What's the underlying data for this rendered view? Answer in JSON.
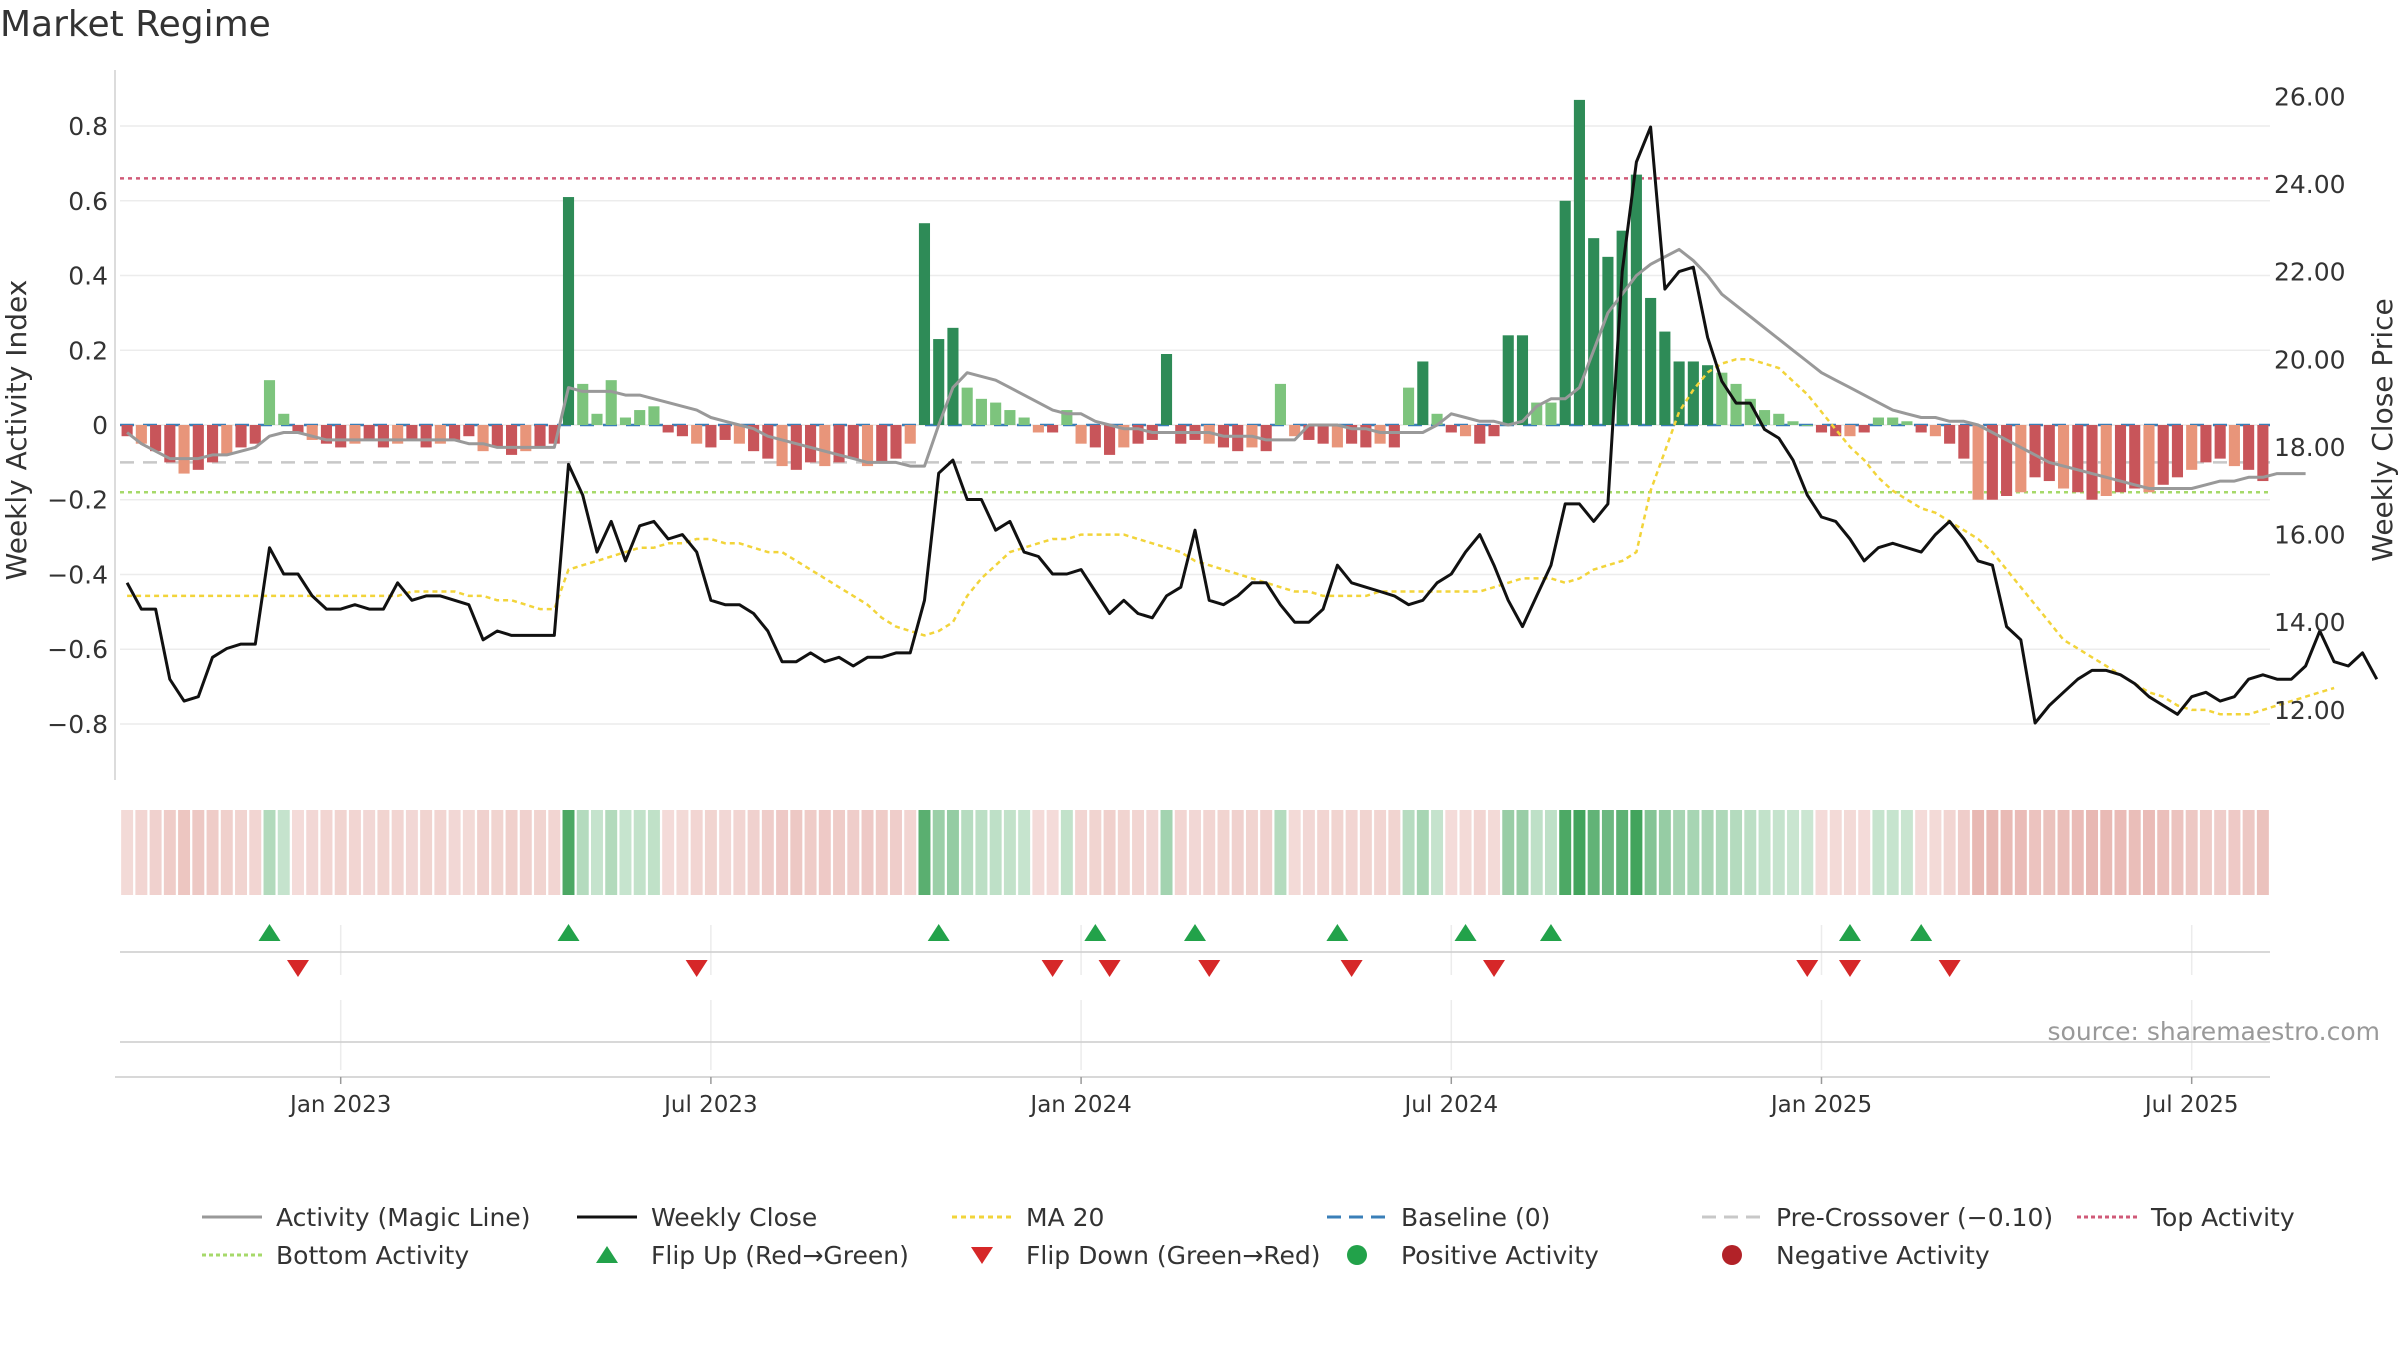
{
  "title": "Market Regime",
  "source_label": "source: sharemaestro.com",
  "colors": {
    "green_strong": "#2e8b57",
    "green_light": "#7dc47d",
    "red_strong": "#c8555a",
    "red_light": "#e8957a",
    "weekly_close": "#111111",
    "magic_line": "#999999",
    "ma20": "#f2d43a",
    "baseline": "#3a7fb8",
    "pre_crossover": "#c8c8c8",
    "top_activity": "#d05a78",
    "bottom_activity": "#a6d96a",
    "flip_up": "#22a24a",
    "flip_down": "#d62728"
  },
  "legend": [
    {
      "label": "Activity (Magic Line)",
      "kind": "line",
      "color": "#999999",
      "dash": ""
    },
    {
      "label": "Weekly Close",
      "kind": "line",
      "color": "#111111",
      "dash": ""
    },
    {
      "label": "MA 20",
      "kind": "line",
      "color": "#f2d43a",
      "dash": "5,4"
    },
    {
      "label": "Baseline (0)",
      "kind": "line",
      "color": "#3a7fb8",
      "dash": "14,8"
    },
    {
      "label": "Pre-Crossover (−0.10)",
      "kind": "line",
      "color": "#c8c8c8",
      "dash": "14,8"
    },
    {
      "label": "Top Activity",
      "kind": "line",
      "color": "#d05a78",
      "dash": "4,3"
    },
    {
      "label": "Bottom Activity",
      "kind": "line",
      "color": "#a6d96a",
      "dash": "4,3"
    },
    {
      "label": "Flip Up (Red→Green)",
      "kind": "tri-up",
      "color": "#22a24a",
      "dash": ""
    },
    {
      "label": "Flip Down (Green→Red)",
      "kind": "tri-down",
      "color": "#d62728",
      "dash": ""
    },
    {
      "label": "Positive Activity",
      "kind": "dot",
      "color": "#22a24a",
      "dash": ""
    },
    {
      "label": "Negative Activity",
      "kind": "dot",
      "color": "#b22228",
      "dash": ""
    }
  ],
  "chart_data": {
    "type": "bar",
    "ylabel": "Weekly Activity Index",
    "y2label": "Weekly Close Price",
    "ylim": [
      -0.95,
      0.95
    ],
    "y2lim": [
      10.4,
      26.6
    ],
    "yticks": [
      "−0.8",
      "−0.6",
      "−0.4",
      "−0.2",
      "0",
      "0.2",
      "0.4",
      "0.6",
      "0.8"
    ],
    "yticks_values": [
      -0.8,
      -0.6,
      -0.4,
      -0.2,
      0,
      0.2,
      0.4,
      0.6,
      0.8
    ],
    "y2ticks": [
      "12.00",
      "14.00",
      "16.00",
      "18.00",
      "20.00",
      "22.00",
      "24.00",
      "26.00"
    ],
    "y2ticks_values": [
      12,
      14,
      16,
      18,
      20,
      22,
      24,
      26
    ],
    "xticks": [
      {
        "label": "Jan 2023",
        "week": 15
      },
      {
        "label": "Jul 2023",
        "week": 41
      },
      {
        "label": "Jan 2024",
        "week": 67
      },
      {
        "label": "Jul 2024",
        "week": 93
      },
      {
        "label": "Jan 2025",
        "week": 119
      },
      {
        "label": "Jul 2025",
        "week": 145
      }
    ],
    "levels": {
      "baseline": 0,
      "pre_crossover": -0.1,
      "top_activity": 0.66,
      "bottom_activity": -0.18
    },
    "series": [
      {
        "name": "Activity (Magic Line)",
        "values": [
          -0.02,
          -0.05,
          -0.07,
          -0.09,
          -0.09,
          -0.09,
          -0.08,
          -0.08,
          -0.07,
          -0.06,
          -0.03,
          -0.02,
          -0.02,
          -0.03,
          -0.04,
          -0.04,
          -0.04,
          -0.04,
          -0.04,
          -0.04,
          -0.04,
          -0.04,
          -0.04,
          -0.04,
          -0.05,
          -0.05,
          -0.06,
          -0.06,
          -0.06,
          -0.06,
          -0.06,
          0.1,
          0.09,
          0.09,
          0.09,
          0.08,
          0.08,
          0.07,
          0.06,
          0.05,
          0.04,
          0.02,
          0.01,
          0.0,
          -0.01,
          -0.03,
          -0.04,
          -0.05,
          -0.06,
          -0.07,
          -0.08,
          -0.09,
          -0.1,
          -0.1,
          -0.1,
          -0.11,
          -0.11,
          0.0,
          0.1,
          0.14,
          0.13,
          0.12,
          0.1,
          0.08,
          0.06,
          0.04,
          0.03,
          0.03,
          0.01,
          0.0,
          -0.01,
          -0.01,
          -0.02,
          -0.02,
          -0.02,
          -0.02,
          -0.02,
          -0.03,
          -0.03,
          -0.03,
          -0.04,
          -0.04,
          -0.04,
          0.0,
          0.0,
          0.0,
          -0.01,
          -0.01,
          -0.02,
          -0.02,
          -0.02,
          -0.02,
          0.0,
          0.03,
          0.02,
          0.01,
          0.01,
          0.0,
          0.01,
          0.05,
          0.07,
          0.07,
          0.1,
          0.2,
          0.3,
          0.35,
          0.4,
          0.43,
          0.45,
          0.47,
          0.44,
          0.4,
          0.35,
          0.32,
          0.29,
          0.26,
          0.23,
          0.2,
          0.17,
          0.14,
          0.12,
          0.1,
          0.08,
          0.06,
          0.04,
          0.03,
          0.02,
          0.02,
          0.01,
          0.01,
          0.0,
          -0.02,
          -0.04,
          -0.06,
          -0.08,
          -0.1,
          -0.11,
          -0.12,
          -0.13,
          -0.14,
          -0.15,
          -0.16,
          -0.17,
          -0.17,
          -0.17,
          -0.17,
          -0.16,
          -0.15,
          -0.15,
          -0.14,
          -0.14,
          -0.13,
          -0.13,
          -0.13
        ]
      },
      {
        "name": "Weekly Close",
        "values": [
          14.9,
          14.3,
          14.3,
          12.7,
          12.2,
          12.3,
          13.2,
          13.4,
          13.5,
          13.5,
          15.7,
          15.1,
          15.1,
          14.6,
          14.3,
          14.3,
          14.4,
          14.3,
          14.3,
          14.9,
          14.5,
          14.6,
          14.6,
          14.5,
          14.4,
          13.6,
          13.8,
          13.7,
          13.7,
          13.7,
          13.7,
          17.6,
          16.9,
          15.6,
          16.3,
          15.4,
          16.2,
          16.3,
          15.9,
          16.0,
          15.6,
          14.5,
          14.4,
          14.4,
          14.2,
          13.8,
          13.1,
          13.1,
          13.3,
          13.1,
          13.2,
          13.0,
          13.2,
          13.2,
          13.3,
          13.3,
          14.5,
          17.4,
          17.7,
          16.8,
          16.8,
          16.1,
          16.3,
          15.6,
          15.5,
          15.1,
          15.1,
          15.2,
          14.7,
          14.2,
          14.5,
          14.2,
          14.1,
          14.6,
          14.8,
          16.1,
          14.5,
          14.4,
          14.6,
          14.9,
          14.9,
          14.4,
          14.0,
          14.0,
          14.3,
          15.3,
          14.9,
          14.8,
          14.7,
          14.6,
          14.4,
          14.5,
          14.9,
          15.1,
          15.6,
          16.0,
          15.3,
          14.5,
          13.9,
          14.6,
          15.3,
          16.7,
          16.7,
          16.3,
          16.7,
          22.0,
          24.5,
          25.3,
          21.6,
          22.0,
          22.1,
          20.5,
          19.5,
          19.0,
          19.0,
          18.4,
          18.2,
          17.7,
          16.9,
          16.4,
          16.3,
          15.9,
          15.4,
          15.7,
          15.8,
          15.7,
          15.6,
          16.0,
          16.3,
          15.9,
          15.4,
          15.3,
          13.9,
          13.6,
          11.7,
          12.1,
          12.4,
          12.7,
          12.9,
          12.9,
          12.8,
          12.6,
          12.3,
          12.1,
          11.9,
          12.3,
          12.4,
          12.2,
          12.3,
          12.7,
          12.8,
          12.7,
          12.7,
          13.0,
          13.8,
          13.1,
          13.0,
          13.3,
          12.7
        ]
      },
      {
        "name": "MA 20",
        "values": [
          14.6,
          14.6,
          14.6,
          14.6,
          14.6,
          14.6,
          14.6,
          14.6,
          14.6,
          14.6,
          14.6,
          14.6,
          14.6,
          14.6,
          14.6,
          14.6,
          14.6,
          14.6,
          14.6,
          14.6,
          14.7,
          14.7,
          14.7,
          14.7,
          14.6,
          14.6,
          14.5,
          14.5,
          14.4,
          14.3,
          14.3,
          15.2,
          15.3,
          15.4,
          15.5,
          15.6,
          15.7,
          15.7,
          15.8,
          15.8,
          15.9,
          15.9,
          15.8,
          15.8,
          15.7,
          15.6,
          15.6,
          15.4,
          15.2,
          15.0,
          14.8,
          14.6,
          14.4,
          14.1,
          13.9,
          13.8,
          13.7,
          13.8,
          14.0,
          14.6,
          15.0,
          15.3,
          15.6,
          15.7,
          15.8,
          15.9,
          15.9,
          16.0,
          16.0,
          16.0,
          16.0,
          15.9,
          15.8,
          15.7,
          15.6,
          15.4,
          15.3,
          15.2,
          15.1,
          15.0,
          14.9,
          14.8,
          14.7,
          14.7,
          14.6,
          14.6,
          14.6,
          14.6,
          14.7,
          14.7,
          14.7,
          14.7,
          14.7,
          14.7,
          14.7,
          14.7,
          14.8,
          14.9,
          15.0,
          15.0,
          15.0,
          14.9,
          15.0,
          15.2,
          15.3,
          15.4,
          15.6,
          17.0,
          17.9,
          18.8,
          19.3,
          19.7,
          19.9,
          20.0,
          20.0,
          19.9,
          19.8,
          19.5,
          19.2,
          18.8,
          18.4,
          18.0,
          17.7,
          17.3,
          17.0,
          16.8,
          16.6,
          16.5,
          16.3,
          16.1,
          15.9,
          15.6,
          15.2,
          14.8,
          14.4,
          14.0,
          13.6,
          13.4,
          13.2,
          13.0,
          12.8,
          12.6,
          12.4,
          12.3,
          12.1,
          12.0,
          12.0,
          11.9,
          11.9,
          11.9,
          12.0,
          12.1,
          12.2,
          12.3,
          12.4,
          12.5
        ]
      }
    ],
    "activity_bars": [
      -0.03,
      -0.05,
      -0.07,
      -0.1,
      -0.13,
      -0.12,
      -0.1,
      -0.08,
      -0.06,
      -0.05,
      0.12,
      0.03,
      -0.02,
      -0.04,
      -0.05,
      -0.06,
      -0.05,
      -0.04,
      -0.06,
      -0.05,
      -0.04,
      -0.06,
      -0.05,
      -0.04,
      -0.03,
      -0.07,
      -0.06,
      -0.08,
      -0.07,
      -0.06,
      -0.05,
      0.61,
      0.11,
      0.03,
      0.12,
      0.02,
      0.04,
      0.05,
      -0.02,
      -0.03,
      -0.05,
      -0.06,
      -0.04,
      -0.05,
      -0.07,
      -0.09,
      -0.11,
      -0.12,
      -0.1,
      -0.11,
      -0.1,
      -0.09,
      -0.11,
      -0.1,
      -0.09,
      -0.05,
      0.54,
      0.23,
      0.26,
      0.1,
      0.07,
      0.06,
      0.04,
      0.02,
      -0.02,
      -0.02,
      0.04,
      -0.05,
      -0.06,
      -0.08,
      -0.06,
      -0.05,
      -0.04,
      0.19,
      -0.05,
      -0.04,
      -0.05,
      -0.06,
      -0.07,
      -0.06,
      -0.07,
      0.11,
      -0.03,
      -0.04,
      -0.05,
      -0.06,
      -0.05,
      -0.06,
      -0.05,
      -0.06,
      0.1,
      0.17,
      0.03,
      -0.02,
      -0.03,
      -0.05,
      -0.03,
      0.24,
      0.24,
      0.06,
      0.06,
      0.6,
      0.87,
      0.5,
      0.45,
      0.52,
      0.67,
      0.34,
      0.25,
      0.17,
      0.17,
      0.16,
      0.14,
      0.11,
      0.07,
      0.04,
      0.03,
      0.01,
      0.0,
      -0.02,
      -0.03,
      -0.03,
      -0.02,
      0.02,
      0.02,
      0.01,
      -0.02,
      -0.03,
      -0.05,
      -0.09,
      -0.2,
      -0.2,
      -0.19,
      -0.18,
      -0.14,
      -0.15,
      -0.17,
      -0.18,
      -0.2,
      -0.19,
      -0.18,
      -0.17,
      -0.18,
      -0.16,
      -0.14,
      -0.12,
      -0.1,
      -0.09,
      -0.11,
      -0.12,
      -0.15
    ],
    "flip_up_weeks": [
      10,
      31,
      57,
      68,
      75,
      85,
      94,
      100,
      121,
      126
    ],
    "flip_down_weeks": [
      12,
      40,
      65,
      69,
      76,
      86,
      96,
      118,
      121,
      128
    ]
  }
}
